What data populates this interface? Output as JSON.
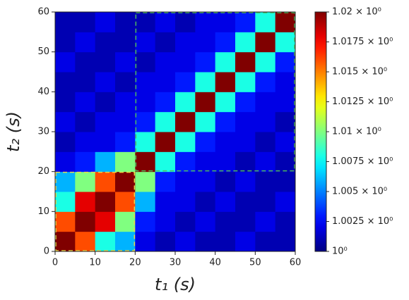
{
  "chart_data": {
    "type": "heatmap",
    "x_label": "t₁ (s)",
    "y_label": "t₂ (s)",
    "xbins": [
      0,
      5,
      10,
      15,
      20,
      25,
      30,
      35,
      40,
      45,
      50,
      55,
      60
    ],
    "ybins": [
      0,
      5,
      10,
      15,
      20,
      25,
      30,
      35,
      40,
      45,
      50,
      55,
      60
    ],
    "z": [
      [
        1.02,
        1.016,
        1.008,
        1.006,
        1.002,
        1.001,
        1.002,
        1.001,
        1.001,
        1.002,
        1.001,
        1.001
      ],
      [
        1.016,
        1.02,
        1.018,
        1.01,
        1.003,
        1.002,
        1.001,
        1.002,
        1.001,
        1.001,
        1.002,
        1.001
      ],
      [
        1.008,
        1.018,
        1.02,
        1.016,
        1.006,
        1.002,
        1.002,
        1.001,
        1.002,
        1.001,
        1.001,
        1.002
      ],
      [
        1.006,
        1.01,
        1.016,
        1.02,
        1.01,
        1.003,
        1.002,
        1.002,
        1.001,
        1.002,
        1.001,
        1.001
      ],
      [
        1.002,
        1.003,
        1.006,
        1.01,
        1.02,
        1.008,
        1.003,
        1.002,
        1.002,
        1.001,
        1.002,
        1.001
      ],
      [
        1.001,
        1.002,
        1.002,
        1.003,
        1.008,
        1.02,
        1.008,
        1.003,
        1.002,
        1.002,
        1.001,
        1.002
      ],
      [
        1.002,
        1.001,
        1.002,
        1.002,
        1.003,
        1.008,
        1.02,
        1.008,
        1.003,
        1.002,
        1.002,
        1.001
      ],
      [
        1.001,
        1.002,
        1.001,
        1.002,
        1.002,
        1.003,
        1.008,
        1.02,
        1.008,
        1.003,
        1.002,
        1.002
      ],
      [
        1.001,
        1.001,
        1.002,
        1.001,
        1.002,
        1.002,
        1.003,
        1.008,
        1.02,
        1.008,
        1.003,
        1.002
      ],
      [
        1.002,
        1.001,
        1.001,
        1.002,
        1.001,
        1.002,
        1.002,
        1.003,
        1.008,
        1.02,
        1.008,
        1.003
      ],
      [
        1.001,
        1.002,
        1.001,
        1.001,
        1.002,
        1.001,
        1.002,
        1.002,
        1.003,
        1.008,
        1.02,
        1.008
      ],
      [
        1.001,
        1.001,
        1.002,
        1.001,
        1.001,
        1.002,
        1.001,
        1.002,
        1.002,
        1.003,
        1.008,
        1.02
      ]
    ],
    "xlim": [
      0,
      60
    ],
    "ylim": [
      0,
      60
    ],
    "xticks": [
      0,
      10,
      20,
      30,
      40,
      50,
      60
    ],
    "yticks": [
      0,
      10,
      20,
      30,
      40,
      50,
      60
    ],
    "colormap": "jet",
    "clim": [
      1,
      1.02
    ],
    "cticks": [
      {
        "value": 1,
        "label": "10⁰"
      },
      {
        "value": 1.0025,
        "label": "1.0025 × 10⁰"
      },
      {
        "value": 1.005,
        "label": "1.005 × 10⁰"
      },
      {
        "value": 1.0075,
        "label": "1.0075 × 10⁰"
      },
      {
        "value": 1.01,
        "label": "1.01 × 10⁰"
      },
      {
        "value": 1.0125,
        "label": "1.0125 × 10⁰"
      },
      {
        "value": 1.015,
        "label": "1.015 × 10⁰"
      },
      {
        "value": 1.0175,
        "label": "1.0175 × 10⁰"
      },
      {
        "value": 1.02,
        "label": "1.02 × 10⁰"
      }
    ],
    "regions": [
      {
        "x": [
          0,
          20
        ],
        "y": [
          0,
          20
        ],
        "color": "#e8d84a"
      },
      {
        "x": [
          20,
          60
        ],
        "y": [
          20,
          60
        ],
        "color": "#4cbb5c"
      }
    ]
  }
}
